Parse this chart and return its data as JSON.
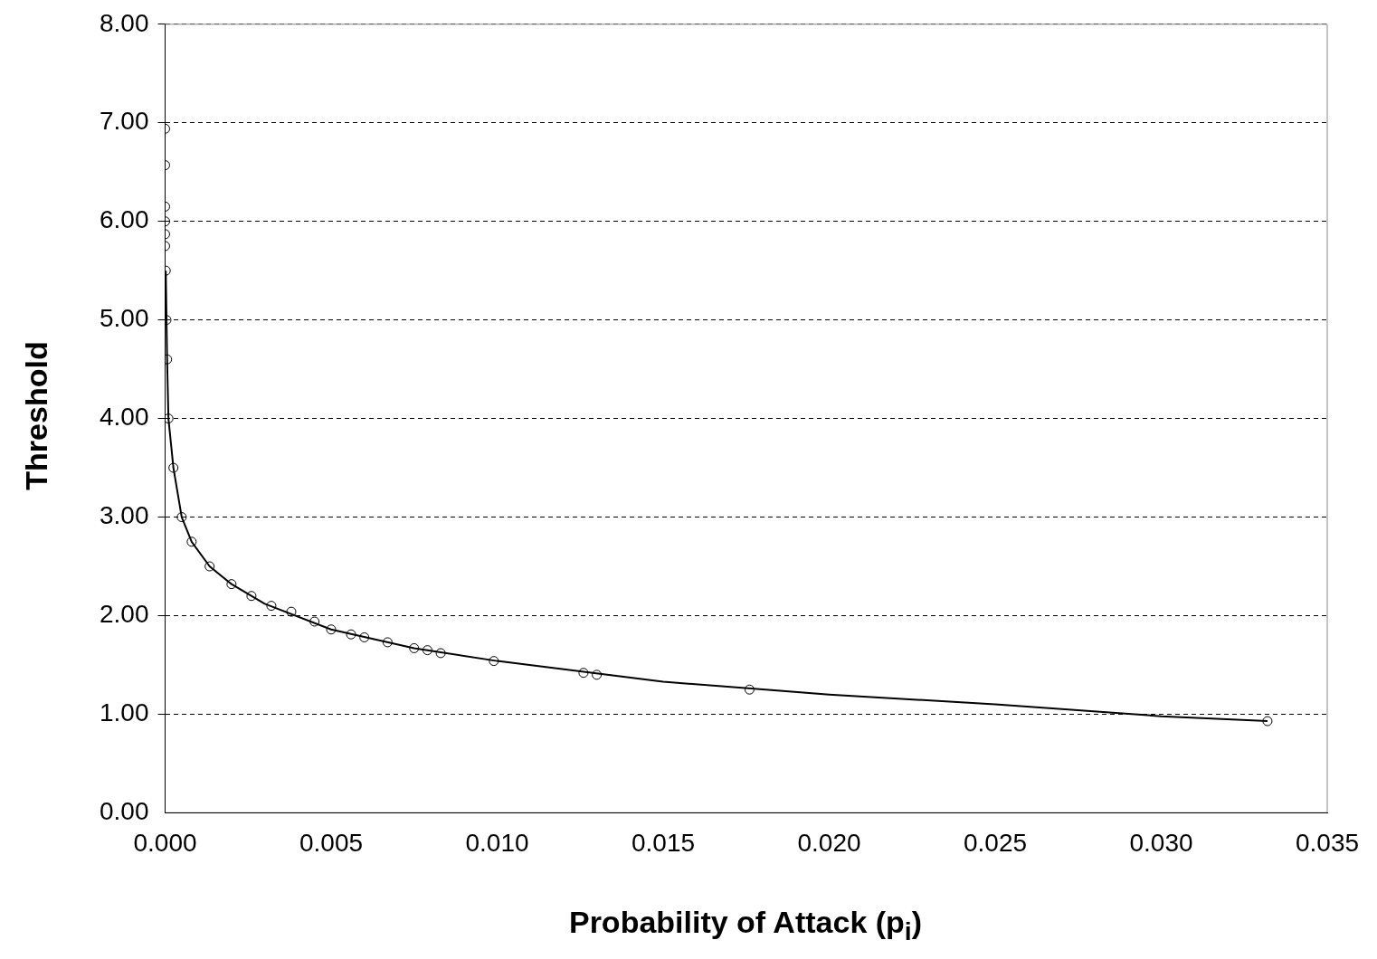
{
  "chart_data": {
    "type": "scatter",
    "xlabel": "Probability of Attack (p$_{i}$)",
    "ylabel": "Threshold",
    "xlim": [
      0,
      0.035
    ],
    "xticks": [
      {
        "value": 0,
        "label": "0.000"
      },
      {
        "value": 0.005,
        "label": "0.005"
      },
      {
        "value": 0.01,
        "label": "0.010"
      },
      {
        "value": 0.015,
        "label": "0.015"
      },
      {
        "value": 0.02,
        "label": "0.020"
      },
      {
        "value": 0.025,
        "label": "0.025"
      },
      {
        "value": 0.03,
        "label": "0.030"
      },
      {
        "value": 0.035,
        "label": "0.035"
      }
    ],
    "ylim": [
      0,
      8
    ],
    "yticks": [
      {
        "value": 0,
        "label": "0.00"
      },
      {
        "value": 1,
        "label": "1.00"
      },
      {
        "value": 2,
        "label": "2.00"
      },
      {
        "value": 3,
        "label": "3.00"
      },
      {
        "value": 4,
        "label": "4.00"
      },
      {
        "value": 5,
        "label": "5.00"
      },
      {
        "value": 6,
        "label": "6.00"
      },
      {
        "value": 7,
        "label": "7.00"
      },
      {
        "value": 8,
        "label": "8.00"
      }
    ],
    "grid": "y",
    "legend": false,
    "marker": "circle",
    "series": [
      {
        "color": "#000000",
        "x": [
          0,
          0,
          0,
          0,
          0,
          0,
          2e-05,
          4e-05,
          6e-05,
          0.0001,
          0.00025,
          0.0005,
          0.0008,
          0.00134,
          0.002,
          0.0026,
          0.0032,
          0.0038,
          0.0045,
          0.005,
          0.0056,
          0.006,
          0.0067,
          0.0075,
          0.0079,
          0.0083,
          0.0099,
          0.0126,
          0.013,
          0.0176,
          0.0332
        ],
        "values": [
          6.94,
          6.57,
          6.15,
          6.0,
          5.87,
          5.75,
          5.5,
          5.0,
          4.6,
          4.0,
          3.5,
          3.0,
          2.75,
          2.5,
          2.32,
          2.2,
          2.1,
          2.04,
          1.94,
          1.86,
          1.81,
          1.78,
          1.73,
          1.67,
          1.65,
          1.62,
          1.54,
          1.42,
          1.4,
          1.25,
          0.93
        ]
      },
      {
        "type": "line",
        "color": "#000000",
        "marker": "none",
        "line_style": "solid",
        "x": [
          2e-05,
          6e-05,
          0.0001,
          0.00025,
          0.0005,
          0.0008,
          0.00134,
          0.002,
          0.003,
          0.005,
          0.0075,
          0.01,
          0.015,
          0.02,
          0.025,
          0.03,
          0.0332
        ],
        "values": [
          5.5,
          4.6,
          4.0,
          3.5,
          3.0,
          2.75,
          2.5,
          2.32,
          2.12,
          1.86,
          1.67,
          1.54,
          1.33,
          1.2,
          1.1,
          0.98,
          0.93
        ]
      }
    ]
  }
}
